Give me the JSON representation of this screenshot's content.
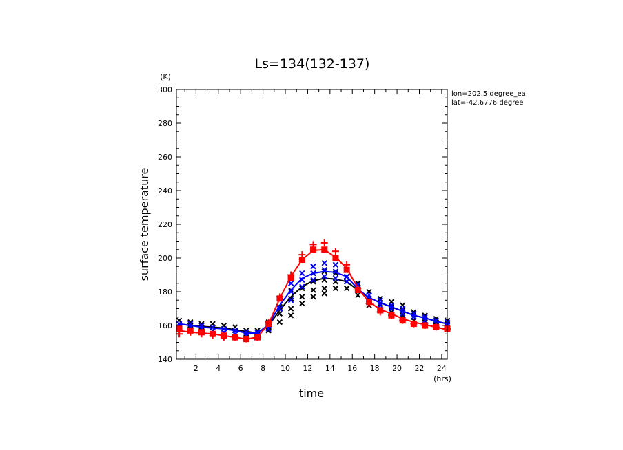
{
  "chart_data": {
    "type": "line",
    "title": "Ls=134(132-137)",
    "xlabel": "time",
    "ylabel": "surface temperature",
    "x_unit": "(hrs)",
    "y_unit": "(K)",
    "xlim": [
      0.25,
      24.5
    ],
    "ylim": [
      140,
      300
    ],
    "xticks": [
      2,
      4,
      6,
      8,
      10,
      12,
      14,
      16,
      18,
      20,
      22,
      24
    ],
    "yticks": [
      140,
      160,
      180,
      200,
      220,
      240,
      260,
      280,
      300
    ],
    "annotations": [
      "lon=202.5 degree_ea",
      "lat=-42.6776 degree"
    ],
    "grid": false,
    "x": [
      0.5,
      1.5,
      2.5,
      3.5,
      4.5,
      5.5,
      6.5,
      7.5,
      8.5,
      9.5,
      10.5,
      11.5,
      12.5,
      13.5,
      14.5,
      15.5,
      16.5,
      17.5,
      18.5,
      19.5,
      20.5,
      21.5,
      22.5,
      23.5,
      24.5
    ],
    "series": [
      {
        "color": "#000000",
        "line": [
          161,
          160,
          159.5,
          159,
          158.5,
          157.5,
          156.5,
          155.5,
          160,
          169,
          177,
          183,
          186.5,
          188,
          187.5,
          186,
          181,
          176.5,
          173.5,
          171,
          168.5,
          166,
          164.5,
          162.5,
          161
        ],
        "scatter": [
          [
            163,
            161,
            159
          ],
          [
            162,
            160,
            158
          ],
          [
            161,
            159,
            157
          ],
          [
            161,
            159,
            157
          ],
          [
            160,
            158,
            156
          ],
          [
            159,
            157,
            155
          ],
          [
            157,
            155,
            153
          ],
          [
            157,
            155,
            153
          ],
          [
            162,
            159,
            157
          ],
          [
            171,
            167,
            162
          ],
          [
            181,
            176,
            170,
            166
          ],
          [
            187,
            182,
            177,
            173
          ],
          [
            191,
            186,
            181,
            177
          ],
          [
            192,
            187,
            182,
            179
          ],
          [
            191,
            186,
            182
          ],
          [
            189,
            186,
            182
          ],
          [
            185,
            181,
            178
          ],
          [
            180,
            176,
            172
          ],
          [
            176,
            173,
            170
          ],
          [
            174,
            171,
            168
          ],
          [
            172,
            169,
            166
          ],
          [
            168,
            165,
            163
          ],
          [
            166,
            164,
            162
          ],
          [
            164,
            162,
            160
          ],
          [
            163,
            161,
            159
          ]
        ]
      },
      {
        "color": "#0000ff",
        "line": [
          161,
          160,
          159,
          158.5,
          158,
          157,
          155.5,
          155.5,
          160.5,
          172,
          181,
          188,
          191,
          192,
          191.5,
          189,
          181.5,
          176.5,
          173.5,
          171,
          168.5,
          166,
          164.5,
          162.5,
          161
        ],
        "scatter": [
          [
            161,
            159
          ],
          [
            161,
            159
          ],
          [
            160,
            158
          ],
          [
            159,
            157
          ],
          [
            158,
            156
          ],
          [
            157,
            155
          ],
          [
            156,
            154
          ],
          [
            156,
            154
          ],
          [
            160,
            158
          ],
          [
            176,
            170
          ],
          [
            185,
            180,
            175
          ],
          [
            191,
            187,
            183
          ],
          [
            195,
            191,
            187
          ],
          [
            197,
            193,
            189
          ],
          [
            196,
            192,
            188
          ],
          [
            193,
            189,
            186
          ],
          [
            184,
            181
          ],
          [
            178,
            175
          ],
          [
            175,
            172
          ],
          [
            172,
            170
          ],
          [
            170,
            167
          ],
          [
            167,
            165
          ],
          [
            165,
            163
          ],
          [
            163,
            161
          ],
          [
            162,
            160
          ]
        ]
      },
      {
        "color": "#ff0000",
        "line": [
          157,
          156,
          155.5,
          155,
          154,
          153,
          152,
          153,
          161,
          176,
          189,
          199,
          204.5,
          205,
          200.5,
          194,
          182,
          174,
          169.5,
          167,
          164,
          162,
          160.5,
          159,
          157.5
        ],
        "square_markers": [
          158,
          157,
          156,
          155,
          154,
          153,
          152,
          153,
          161,
          176,
          188,
          199,
          205,
          205,
          200,
          193,
          181,
          174,
          169,
          166,
          163,
          161,
          160,
          159,
          158
        ],
        "plus_markers": [
          [
            155
          ],
          [
            156
          ],
          [
            155
          ],
          [
            154
          ],
          [
            153
          ],
          [
            153
          ],
          [
            152
          ],
          [
            153
          ],
          [
            162
          ],
          [
            177
          ],
          [
            190
          ],
          [
            202
          ],
          [
            208
          ],
          [
            209
          ],
          [
            204
          ],
          [
            196
          ],
          [
            182
          ],
          [
            173
          ],
          [
            168
          ],
          [
            166
          ],
          [
            163
          ],
          [
            161
          ],
          [
            160
          ],
          [
            159
          ],
          [
            158
          ]
        ]
      }
    ]
  }
}
